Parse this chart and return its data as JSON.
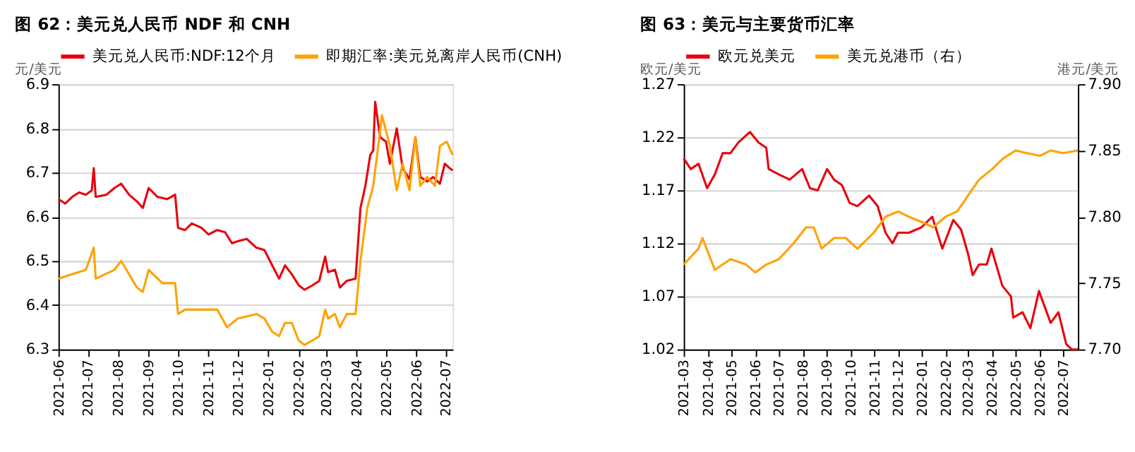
{
  "chart_data": [
    {
      "type": "line",
      "title": "图 62：美元兑人民币 NDF 和 CNH",
      "ylabel": "元/美元",
      "xlim": [
        "2021-06-01",
        "2022-07-08"
      ],
      "xticks": [
        "2021-06",
        "2021-07",
        "2021-08",
        "2021-09",
        "2021-10",
        "2021-11",
        "2021-12",
        "2022-01",
        "2022-02",
        "2022-03",
        "2022-04",
        "2022-05",
        "2022-06",
        "2022-07"
      ],
      "ylim": [
        6.3,
        6.9
      ],
      "yticks": [
        6.3,
        6.4,
        6.5,
        6.6,
        6.7,
        6.8,
        6.9
      ],
      "grid": "y",
      "legend": "top",
      "marker": "none",
      "line_style": "solid",
      "series": [
        {
          "name": "美元兑人民币:NDF:12个月",
          "color": "#e8000b",
          "x": [
            "2021-06-01",
            "2021-06-08",
            "2021-06-15",
            "2021-06-22",
            "2021-06-29",
            "2021-07-05",
            "2021-07-07",
            "2021-07-09",
            "2021-07-20",
            "2021-07-28",
            "2021-08-04",
            "2021-08-12",
            "2021-08-20",
            "2021-08-26",
            "2021-09-01",
            "2021-09-10",
            "2021-09-20",
            "2021-09-28",
            "2021-10-01",
            "2021-10-08",
            "2021-10-15",
            "2021-10-25",
            "2021-11-01",
            "2021-11-10",
            "2021-11-18",
            "2021-11-25",
            "2021-12-01",
            "2021-12-10",
            "2021-12-20",
            "2021-12-28",
            "2022-01-05",
            "2022-01-12",
            "2022-01-18",
            "2022-01-25",
            "2022-02-01",
            "2022-02-07",
            "2022-02-15",
            "2022-02-22",
            "2022-02-28",
            "2022-03-03",
            "2022-03-10",
            "2022-03-15",
            "2022-03-22",
            "2022-03-31",
            "2022-04-05",
            "2022-04-10",
            "2022-04-15",
            "2022-04-18",
            "2022-04-20",
            "2022-04-25",
            "2022-05-01",
            "2022-05-05",
            "2022-05-12",
            "2022-05-18",
            "2022-05-25",
            "2022-05-31",
            "2022-06-05",
            "2022-06-12",
            "2022-06-18",
            "2022-06-25",
            "2022-06-30",
            "2022-07-05",
            "2022-07-08"
          ],
          "values": [
            6.64,
            6.63,
            6.645,
            6.655,
            6.65,
            6.66,
            6.71,
            6.645,
            6.65,
            6.665,
            6.675,
            6.65,
            6.635,
            6.62,
            6.665,
            6.645,
            6.64,
            6.65,
            6.575,
            6.57,
            6.585,
            6.575,
            6.56,
            6.57,
            6.565,
            6.54,
            6.545,
            6.55,
            6.53,
            6.525,
            6.49,
            6.46,
            6.49,
            6.47,
            6.445,
            6.435,
            6.445,
            6.455,
            6.51,
            6.475,
            6.48,
            6.44,
            6.455,
            6.46,
            6.62,
            6.67,
            6.74,
            6.75,
            6.86,
            6.78,
            6.77,
            6.72,
            6.8,
            6.71,
            6.685,
            6.78,
            6.69,
            6.68,
            6.69,
            6.675,
            6.72,
            6.71,
            6.705
          ]
        },
        {
          "name": "即期汇率:美元兑离岸人民币(CNH)",
          "color": "#ffa200",
          "x": [
            "2021-06-01",
            "2021-06-15",
            "2021-06-29",
            "2021-07-07",
            "2021-07-09",
            "2021-07-28",
            "2021-08-04",
            "2021-08-20",
            "2021-08-26",
            "2021-09-01",
            "2021-09-15",
            "2021-09-28",
            "2021-10-01",
            "2021-10-08",
            "2021-10-25",
            "2021-11-10",
            "2021-11-20",
            "2021-12-01",
            "2021-12-20",
            "2021-12-28",
            "2022-01-05",
            "2022-01-12",
            "2022-01-18",
            "2022-01-25",
            "2022-02-01",
            "2022-02-07",
            "2022-02-15",
            "2022-02-22",
            "2022-02-28",
            "2022-03-03",
            "2022-03-10",
            "2022-03-15",
            "2022-03-22",
            "2022-03-31",
            "2022-04-05",
            "2022-04-12",
            "2022-04-18",
            "2022-04-22",
            "2022-04-27",
            "2022-05-05",
            "2022-05-12",
            "2022-05-18",
            "2022-05-25",
            "2022-05-31",
            "2022-06-05",
            "2022-06-12",
            "2022-06-20",
            "2022-06-25",
            "2022-07-02",
            "2022-07-08"
          ],
          "values": [
            6.46,
            6.47,
            6.48,
            6.53,
            6.46,
            6.48,
            6.5,
            6.44,
            6.43,
            6.48,
            6.45,
            6.45,
            6.38,
            6.39,
            6.39,
            6.39,
            6.35,
            6.37,
            6.38,
            6.37,
            6.34,
            6.33,
            6.36,
            6.36,
            6.32,
            6.31,
            6.32,
            6.33,
            6.39,
            6.37,
            6.38,
            6.35,
            6.38,
            6.38,
            6.5,
            6.62,
            6.67,
            6.74,
            6.83,
            6.76,
            6.66,
            6.72,
            6.66,
            6.78,
            6.67,
            6.69,
            6.67,
            6.76,
            6.77,
            6.74
          ]
        }
      ]
    },
    {
      "type": "line",
      "title": "图 63：美元与主要货币汇率",
      "ylabel": "欧元/美元",
      "y2label": "港元/美元",
      "xlim": [
        "2021-03-01",
        "2022-07-20"
      ],
      "xticks": [
        "2021-03",
        "2021-04",
        "2021-05",
        "2021-06",
        "2021-07",
        "2021-08",
        "2021-09",
        "2021-10",
        "2021-11",
        "2021-12",
        "2022-01",
        "2022-02",
        "2022-03",
        "2022-04",
        "2022-05",
        "2022-06",
        "2022-07"
      ],
      "ylim": [
        1.02,
        1.27
      ],
      "yticks": [
        1.02,
        1.07,
        1.12,
        1.17,
        1.22,
        1.27
      ],
      "y2lim": [
        7.7,
        7.9
      ],
      "y2ticks": [
        {
          "value": 7.7,
          "label": "7.70"
        },
        {
          "value": 7.75,
          "label": "7.75"
        },
        {
          "value": 7.8,
          "label": "7.80"
        },
        {
          "value": 7.85,
          "label": "7.85"
        },
        {
          "value": 7.9,
          "label": "7.90"
        }
      ],
      "grid": "y",
      "legend": "top",
      "marker": "none",
      "line_style": "solid",
      "series": [
        {
          "name": "欧元兑美元",
          "color": "#e8000b",
          "x": [
            "2021-03-01",
            "2021-03-10",
            "2021-03-20",
            "2021-03-31",
            "2021-04-10",
            "2021-04-20",
            "2021-04-30",
            "2021-05-10",
            "2021-05-25",
            "2021-06-05",
            "2021-06-15",
            "2021-06-18",
            "2021-07-01",
            "2021-07-15",
            "2021-07-31",
            "2021-08-10",
            "2021-08-20",
            "2021-09-01",
            "2021-09-10",
            "2021-09-20",
            "2021-09-30",
            "2021-10-10",
            "2021-10-25",
            "2021-11-05",
            "2021-11-15",
            "2021-11-24",
            "2021-12-01",
            "2021-12-15",
            "2021-12-31",
            "2022-01-14",
            "2022-01-27",
            "2022-02-10",
            "2022-02-20",
            "2022-03-01",
            "2022-03-07",
            "2022-03-15",
            "2022-03-25",
            "2022-03-31",
            "2022-04-14",
            "2022-04-25",
            "2022-04-28",
            "2022-05-10",
            "2022-05-20",
            "2022-05-31",
            "2022-06-15",
            "2022-06-25",
            "2022-07-05",
            "2022-07-12",
            "2022-07-20"
          ],
          "values": [
            1.2,
            1.19,
            1.195,
            1.172,
            1.185,
            1.205,
            1.205,
            1.215,
            1.225,
            1.215,
            1.21,
            1.19,
            1.185,
            1.18,
            1.19,
            1.172,
            1.17,
            1.19,
            1.18,
            1.175,
            1.158,
            1.155,
            1.165,
            1.155,
            1.13,
            1.12,
            1.13,
            1.13,
            1.135,
            1.145,
            1.115,
            1.142,
            1.133,
            1.11,
            1.09,
            1.1,
            1.1,
            1.115,
            1.08,
            1.07,
            1.05,
            1.055,
            1.04,
            1.075,
            1.045,
            1.055,
            1.025,
            1.02,
            1.02
          ]
        },
        {
          "name": "美元兑港币（右）",
          "color": "#ffa200",
          "axis": "y2",
          "x": [
            "2021-03-01",
            "2021-03-20",
            "2021-03-25",
            "2021-04-10",
            "2021-04-30",
            "2021-05-20",
            "2021-06-01",
            "2021-06-15",
            "2021-07-01",
            "2021-07-20",
            "2021-08-05",
            "2021-08-15",
            "2021-08-25",
            "2021-09-10",
            "2021-09-25",
            "2021-10-10",
            "2021-10-31",
            "2021-11-15",
            "2021-12-01",
            "2021-12-15",
            "2022-01-01",
            "2022-01-15",
            "2022-01-31",
            "2022-02-15",
            "2022-03-01",
            "2022-03-15",
            "2022-04-01",
            "2022-04-15",
            "2022-05-01",
            "2022-05-15",
            "2022-06-01",
            "2022-06-15",
            "2022-07-01",
            "2022-07-20"
          ],
          "values": [
            7.764,
            7.776,
            7.784,
            7.76,
            7.768,
            7.764,
            7.758,
            7.764,
            7.768,
            7.78,
            7.792,
            7.792,
            7.776,
            7.784,
            7.784,
            7.776,
            7.788,
            7.8,
            7.804,
            7.8,
            7.796,
            7.792,
            7.8,
            7.804,
            7.816,
            7.828,
            7.836,
            7.844,
            7.85,
            7.848,
            7.846,
            7.85,
            7.848,
            7.85
          ]
        }
      ]
    }
  ]
}
